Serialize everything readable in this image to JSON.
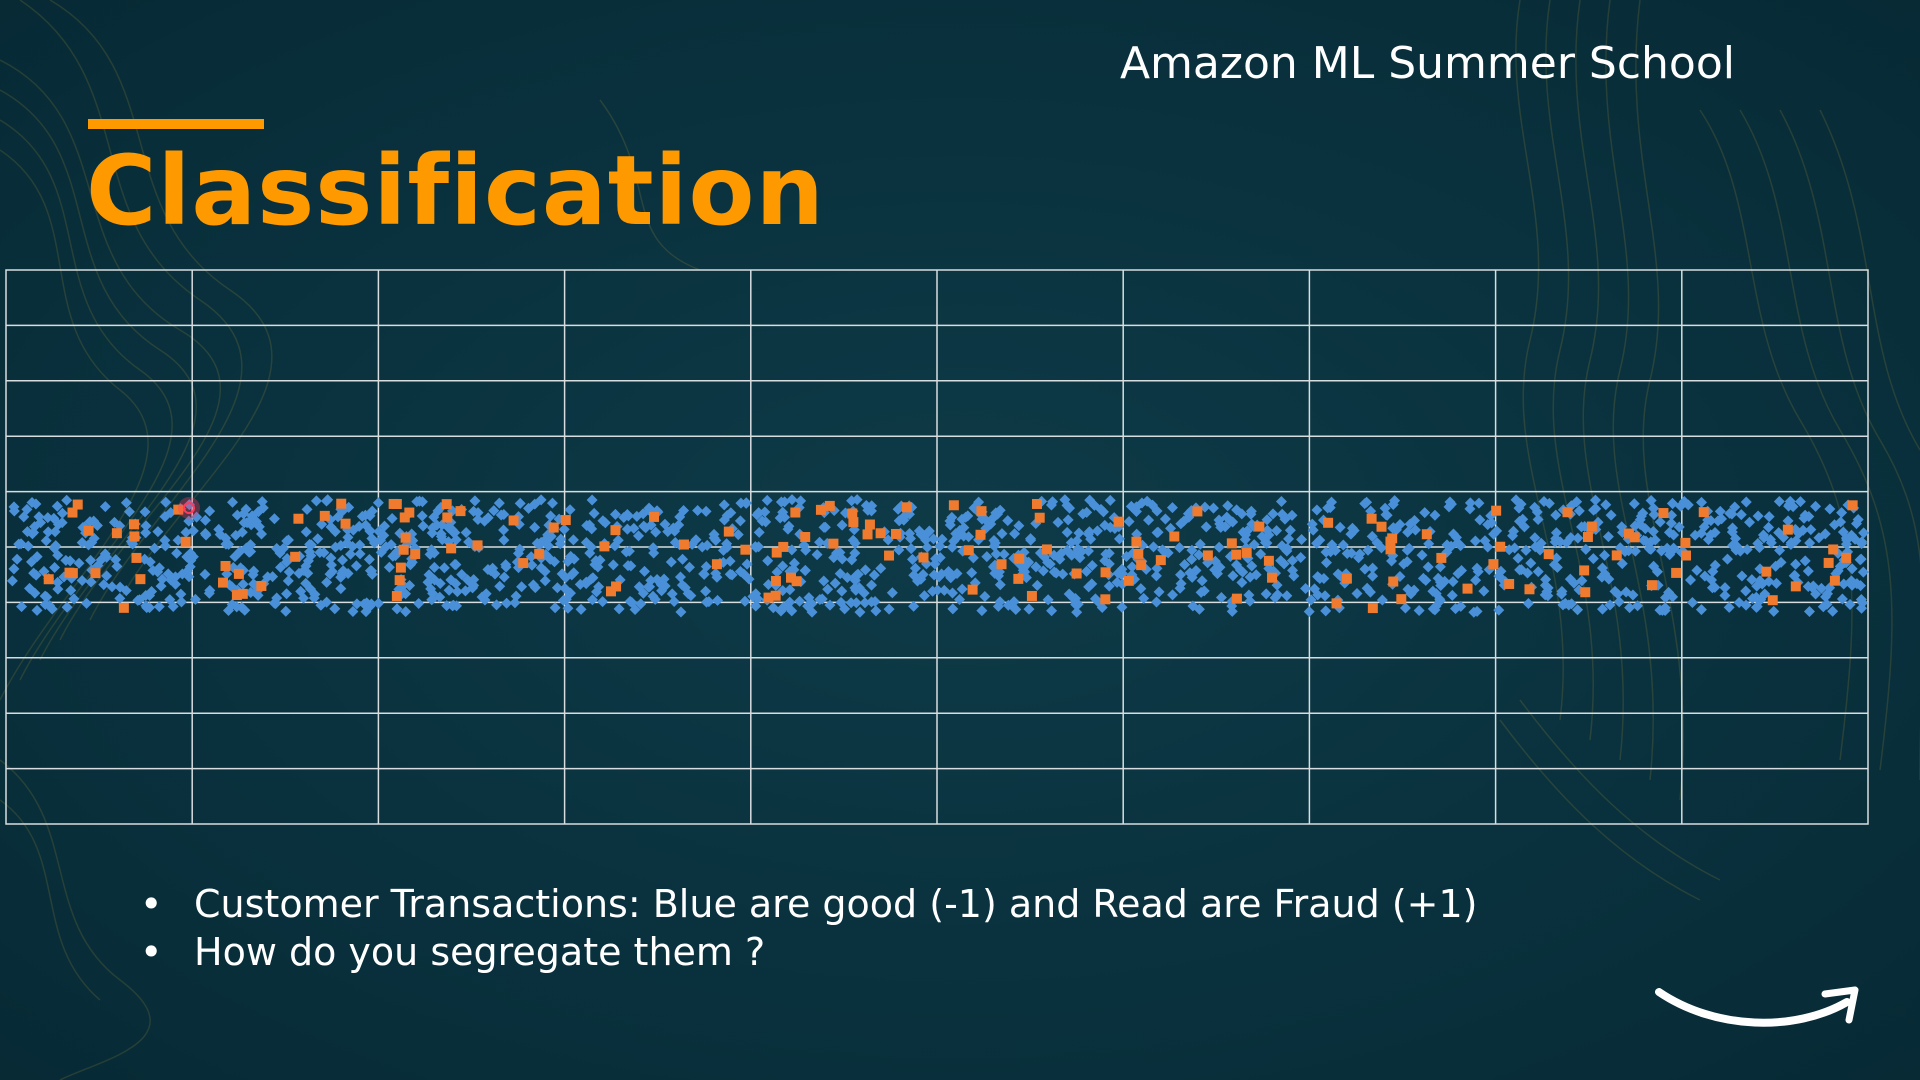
{
  "slide": {
    "header": "Amazon ML Summer School",
    "title": "Classification",
    "bullets": [
      "Customer Transactions: Blue are good (-1) and Read are Fraud (+1)",
      "How do you segregate them ?"
    ],
    "bullet_glyph": "•",
    "logo_icon": "amazon-smile-arrow-icon"
  },
  "colors": {
    "background": "#0b3340",
    "accent": "#ff9900",
    "text": "#ffffff",
    "good": "#4a90d9",
    "fraud": "#f07a2e",
    "grid": "#d8dde0",
    "cursor": "#ff3b5c"
  },
  "chart_data": {
    "type": "scatter",
    "grid": true,
    "grid_columns": 10,
    "grid_rows": 10,
    "series": [
      {
        "name": "Blue are good (-1)",
        "color": "#4a90d9",
        "marker": "diamond",
        "approx_count": 1500
      },
      {
        "name": "Read are Fraud (+1)",
        "color": "#f07a2e",
        "marker": "square",
        "approx_count": 150
      }
    ],
    "band_rows": [
      4,
      6
    ],
    "title": "",
    "xlabel": "",
    "ylabel": ""
  }
}
